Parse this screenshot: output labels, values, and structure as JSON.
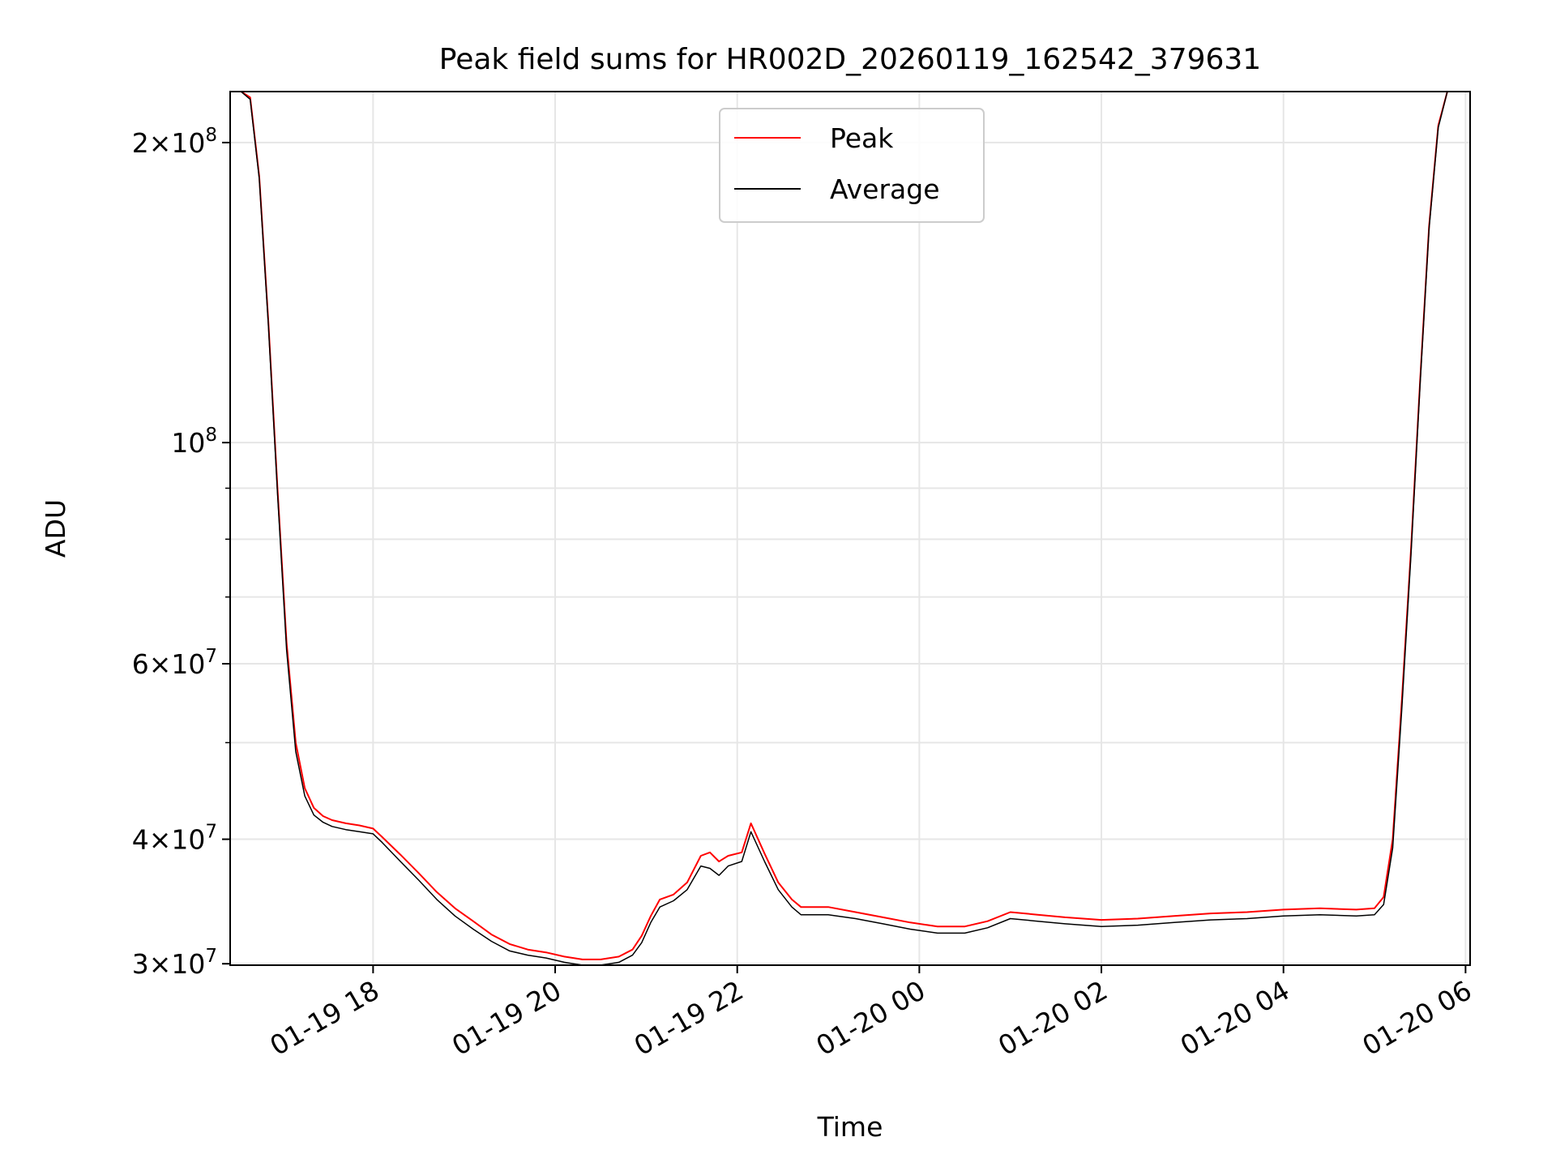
{
  "chart_data": {
    "type": "line",
    "title": "Peak field sums for HR002D_20260119_162542_379631",
    "xlabel": "Time",
    "ylabel": "ADU",
    "yscale": "log",
    "grid": true,
    "legend_location": "upper center",
    "x_unit": "hours since 2026-01-19 00:00",
    "xlim": [
      16.43,
      30.05
    ],
    "ylim": [
      29900000,
      225000000
    ],
    "x_ticks": [
      {
        "value": 18,
        "label": "01-19 18"
      },
      {
        "value": 20,
        "label": "01-19 20"
      },
      {
        "value": 22,
        "label": "01-19 22"
      },
      {
        "value": 24,
        "label": "01-20 00"
      },
      {
        "value": 26,
        "label": "01-20 02"
      },
      {
        "value": 28,
        "label": "01-20 04"
      },
      {
        "value": 30,
        "label": "01-20 06"
      }
    ],
    "y_ticks": [
      {
        "value": 30000000,
        "mantissa": "3",
        "exp": "7"
      },
      {
        "value": 40000000,
        "mantissa": "4",
        "exp": "7"
      },
      {
        "value": 60000000,
        "mantissa": "6",
        "exp": "7"
      },
      {
        "value": 100000000,
        "mantissa": "",
        "exp": "8"
      },
      {
        "value": 200000000,
        "mantissa": "2",
        "exp": "8"
      }
    ],
    "y_minor_ticks": [
      50000000,
      70000000,
      80000000,
      90000000
    ],
    "series": [
      {
        "name": "Peak",
        "color": "#ff0000",
        "x": [
          16.55,
          16.65,
          16.75,
          16.85,
          16.95,
          17.05,
          17.15,
          17.25,
          17.35,
          17.45,
          17.55,
          17.7,
          17.85,
          18.0,
          18.1,
          18.3,
          18.5,
          18.7,
          18.9,
          19.1,
          19.3,
          19.5,
          19.7,
          19.9,
          20.1,
          20.3,
          20.5,
          20.7,
          20.85,
          20.95,
          21.05,
          21.15,
          21.3,
          21.45,
          21.6,
          21.7,
          21.8,
          21.9,
          22.05,
          22.15,
          22.3,
          22.45,
          22.6,
          22.7,
          23.0,
          23.3,
          23.6,
          23.9,
          24.2,
          24.5,
          24.75,
          25.0,
          25.3,
          25.6,
          26.0,
          26.4,
          26.8,
          27.2,
          27.6,
          28.0,
          28.4,
          28.8,
          29.0,
          29.1,
          29.2,
          29.3,
          29.4,
          29.5,
          29.6,
          29.7,
          29.8,
          29.9
        ],
        "y": [
          225000000,
          222000000,
          185000000,
          132000000,
          90000000,
          63000000,
          50000000,
          45000000,
          43000000,
          42200000,
          41800000,
          41500000,
          41300000,
          41000000,
          40200000,
          38600000,
          37000000,
          35400000,
          34100000,
          33100000,
          32100000,
          31400000,
          31000000,
          30800000,
          30500000,
          30300000,
          30300000,
          30500000,
          31000000,
          32000000,
          33500000,
          34800000,
          35200000,
          36200000,
          38500000,
          38800000,
          38000000,
          38500000,
          38800000,
          41500000,
          38700000,
          36200000,
          34800000,
          34200000,
          34200000,
          33800000,
          33400000,
          33000000,
          32700000,
          32700000,
          33100000,
          33800000,
          33600000,
          33400000,
          33200000,
          33300000,
          33500000,
          33700000,
          33800000,
          34000000,
          34100000,
          34000000,
          34100000,
          35000000,
          40000000,
          55000000,
          78000000,
          115000000,
          165000000,
          208000000,
          225000000,
          225000000
        ]
      },
      {
        "name": "Average",
        "color": "#000000",
        "x": [
          16.55,
          16.65,
          16.75,
          16.85,
          16.95,
          17.05,
          17.15,
          17.25,
          17.35,
          17.45,
          17.55,
          17.7,
          17.85,
          18.0,
          18.1,
          18.3,
          18.5,
          18.7,
          18.9,
          19.1,
          19.3,
          19.5,
          19.7,
          19.9,
          20.1,
          20.3,
          20.5,
          20.7,
          20.85,
          20.95,
          21.05,
          21.15,
          21.3,
          21.45,
          21.6,
          21.7,
          21.8,
          21.9,
          22.05,
          22.15,
          22.3,
          22.45,
          22.6,
          22.7,
          23.0,
          23.3,
          23.6,
          23.9,
          24.2,
          24.5,
          24.75,
          25.0,
          25.3,
          25.6,
          26.0,
          26.4,
          26.8,
          27.2,
          27.6,
          28.0,
          28.4,
          28.8,
          29.0,
          29.1,
          29.2,
          29.3,
          29.4,
          29.5,
          29.6,
          29.7,
          29.8,
          29.9
        ],
        "y": [
          225000000,
          221000000,
          184000000,
          131000000,
          89000000,
          62000000,
          49000000,
          44200000,
          42300000,
          41600000,
          41200000,
          40900000,
          40700000,
          40500000,
          39700000,
          38000000,
          36400000,
          34800000,
          33500000,
          32500000,
          31600000,
          30900000,
          30600000,
          30400000,
          30100000,
          29900000,
          29900000,
          30100000,
          30600000,
          31500000,
          33000000,
          34200000,
          34700000,
          35600000,
          37600000,
          37400000,
          36800000,
          37600000,
          38000000,
          40700000,
          38000000,
          35600000,
          34200000,
          33600000,
          33600000,
          33300000,
          32900000,
          32500000,
          32200000,
          32200000,
          32600000,
          33300000,
          33100000,
          32900000,
          32700000,
          32800000,
          33000000,
          33200000,
          33300000,
          33500000,
          33600000,
          33500000,
          33600000,
          34400000,
          39200000,
          54000000,
          77000000,
          114000000,
          164000000,
          207000000,
          225000000,
          225000000
        ]
      }
    ]
  }
}
